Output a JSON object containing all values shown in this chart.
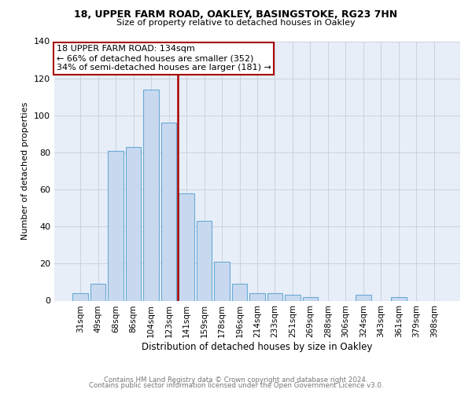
{
  "title1": "18, UPPER FARM ROAD, OAKLEY, BASINGSTOKE, RG23 7HN",
  "title2": "Size of property relative to detached houses in Oakley",
  "xlabel": "Distribution of detached houses by size in Oakley",
  "ylabel": "Number of detached properties",
  "categories": [
    "31sqm",
    "49sqm",
    "68sqm",
    "86sqm",
    "104sqm",
    "123sqm",
    "141sqm",
    "159sqm",
    "178sqm",
    "196sqm",
    "214sqm",
    "233sqm",
    "251sqm",
    "269sqm",
    "288sqm",
    "306sqm",
    "324sqm",
    "343sqm",
    "361sqm",
    "379sqm",
    "398sqm"
  ],
  "values": [
    4,
    9,
    81,
    83,
    114,
    96,
    58,
    43,
    21,
    9,
    4,
    4,
    3,
    2,
    0,
    0,
    3,
    0,
    2,
    0,
    0
  ],
  "bar_color": "#c8d9ef",
  "bar_edge_color": "#6aaad4",
  "vline_x": 6.0,
  "vline_color": "#aa0000",
  "annotation_lines": [
    "18 UPPER FARM ROAD: 134sqm",
    "← 66% of detached houses are smaller (352)",
    "34% of semi-detached houses are larger (181) →"
  ],
  "annot_box_color": "#ffffff",
  "annot_box_edge": "#aa0000",
  "ylim": [
    0,
    140
  ],
  "yticks": [
    0,
    20,
    40,
    60,
    80,
    100,
    120,
    140
  ],
  "footer1": "Contains HM Land Registry data © Crown copyright and database right 2024.",
  "footer2": "Contains public sector information licensed under the Open Government Licence v3.0.",
  "bg_color": "#e8eef8",
  "fig_bg": "#ffffff",
  "grid_color": "#c8cdd8"
}
